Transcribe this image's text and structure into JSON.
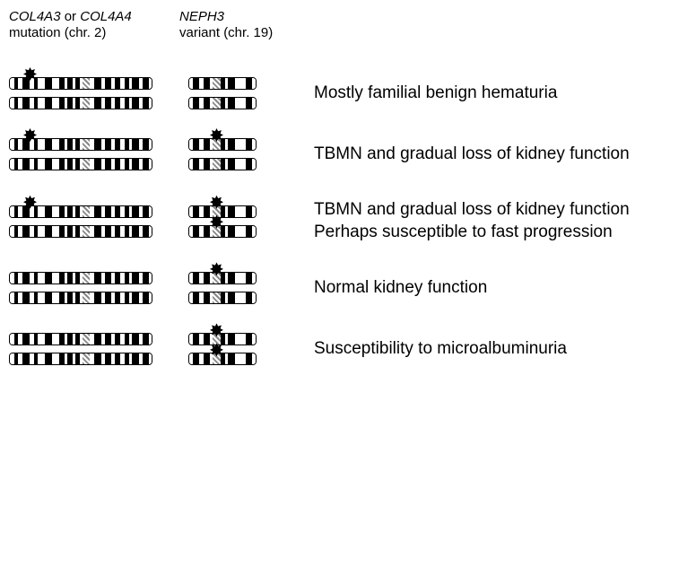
{
  "headers": {
    "col1_line1_gene": "COL4A3",
    "col1_line1_or": " or ",
    "col1_line1_gene2": "COL4A4",
    "col1_line2": "mutation (chr. 2)",
    "col2_line1_gene": "NEPH3",
    "col2_line2": "variant (chr. 19)"
  },
  "rows": [
    {
      "longMarkers": [
        true,
        false
      ],
      "shortMarkers": [
        false,
        false
      ],
      "label": "Mostly familial benign hematuria"
    },
    {
      "longMarkers": [
        true,
        false
      ],
      "shortMarkers": [
        true,
        false
      ],
      "label": "TBMN and gradual loss of kidney function"
    },
    {
      "longMarkers": [
        true,
        false
      ],
      "shortMarkers": [
        true,
        true
      ],
      "label": "TBMN and gradual loss of kidney function\nPerhaps susceptible to fast progression"
    },
    {
      "longMarkers": [
        false,
        false
      ],
      "shortMarkers": [
        true,
        false
      ],
      "label": "Normal kidney function"
    },
    {
      "longMarkers": [
        false,
        false
      ],
      "shortMarkers": [
        true,
        true
      ],
      "label": "Susceptibility to microalbuminuria"
    }
  ],
  "longChromosomeBands": [
    {
      "type": "white",
      "width": 3
    },
    {
      "type": "black",
      "width": 3
    },
    {
      "type": "white",
      "width": 3
    },
    {
      "type": "black",
      "width": 5
    },
    {
      "type": "white",
      "width": 3
    },
    {
      "type": "black",
      "width": 3
    },
    {
      "type": "white",
      "width": 5
    },
    {
      "type": "black",
      "width": 5
    },
    {
      "type": "white",
      "width": 5
    },
    {
      "type": "black",
      "width": 4
    },
    {
      "type": "white",
      "width": 2
    },
    {
      "type": "black",
      "width": 4
    },
    {
      "type": "white",
      "width": 2
    },
    {
      "type": "black",
      "width": 3
    },
    {
      "type": "white",
      "width": 2
    },
    {
      "type": "gray",
      "width": 5
    },
    {
      "type": "white",
      "width": 3
    },
    {
      "type": "black",
      "width": 5
    },
    {
      "type": "white",
      "width": 3
    },
    {
      "type": "black",
      "width": 4
    },
    {
      "type": "white",
      "width": 3
    },
    {
      "type": "black",
      "width": 4
    },
    {
      "type": "white",
      "width": 3
    },
    {
      "type": "black",
      "width": 3
    },
    {
      "type": "white",
      "width": 2
    },
    {
      "type": "black",
      "width": 5
    },
    {
      "type": "white",
      "width": 3
    },
    {
      "type": "black",
      "width": 4
    },
    {
      "type": "white",
      "width": 2
    }
  ],
  "shortChromosomeBands": [
    {
      "type": "white",
      "width": 4
    },
    {
      "type": "black",
      "width": 6
    },
    {
      "type": "white",
      "width": 5
    },
    {
      "type": "black",
      "width": 6
    },
    {
      "type": "white",
      "width": 3
    },
    {
      "type": "gray",
      "width": 8
    },
    {
      "type": "black",
      "width": 5
    },
    {
      "type": "white",
      "width": 3
    },
    {
      "type": "black",
      "width": 7
    },
    {
      "type": "white",
      "width": 11
    },
    {
      "type": "black",
      "width": 6
    },
    {
      "type": "white",
      "width": 4
    }
  ],
  "colors": {
    "black": "#000000",
    "white": "#ffffff"
  }
}
